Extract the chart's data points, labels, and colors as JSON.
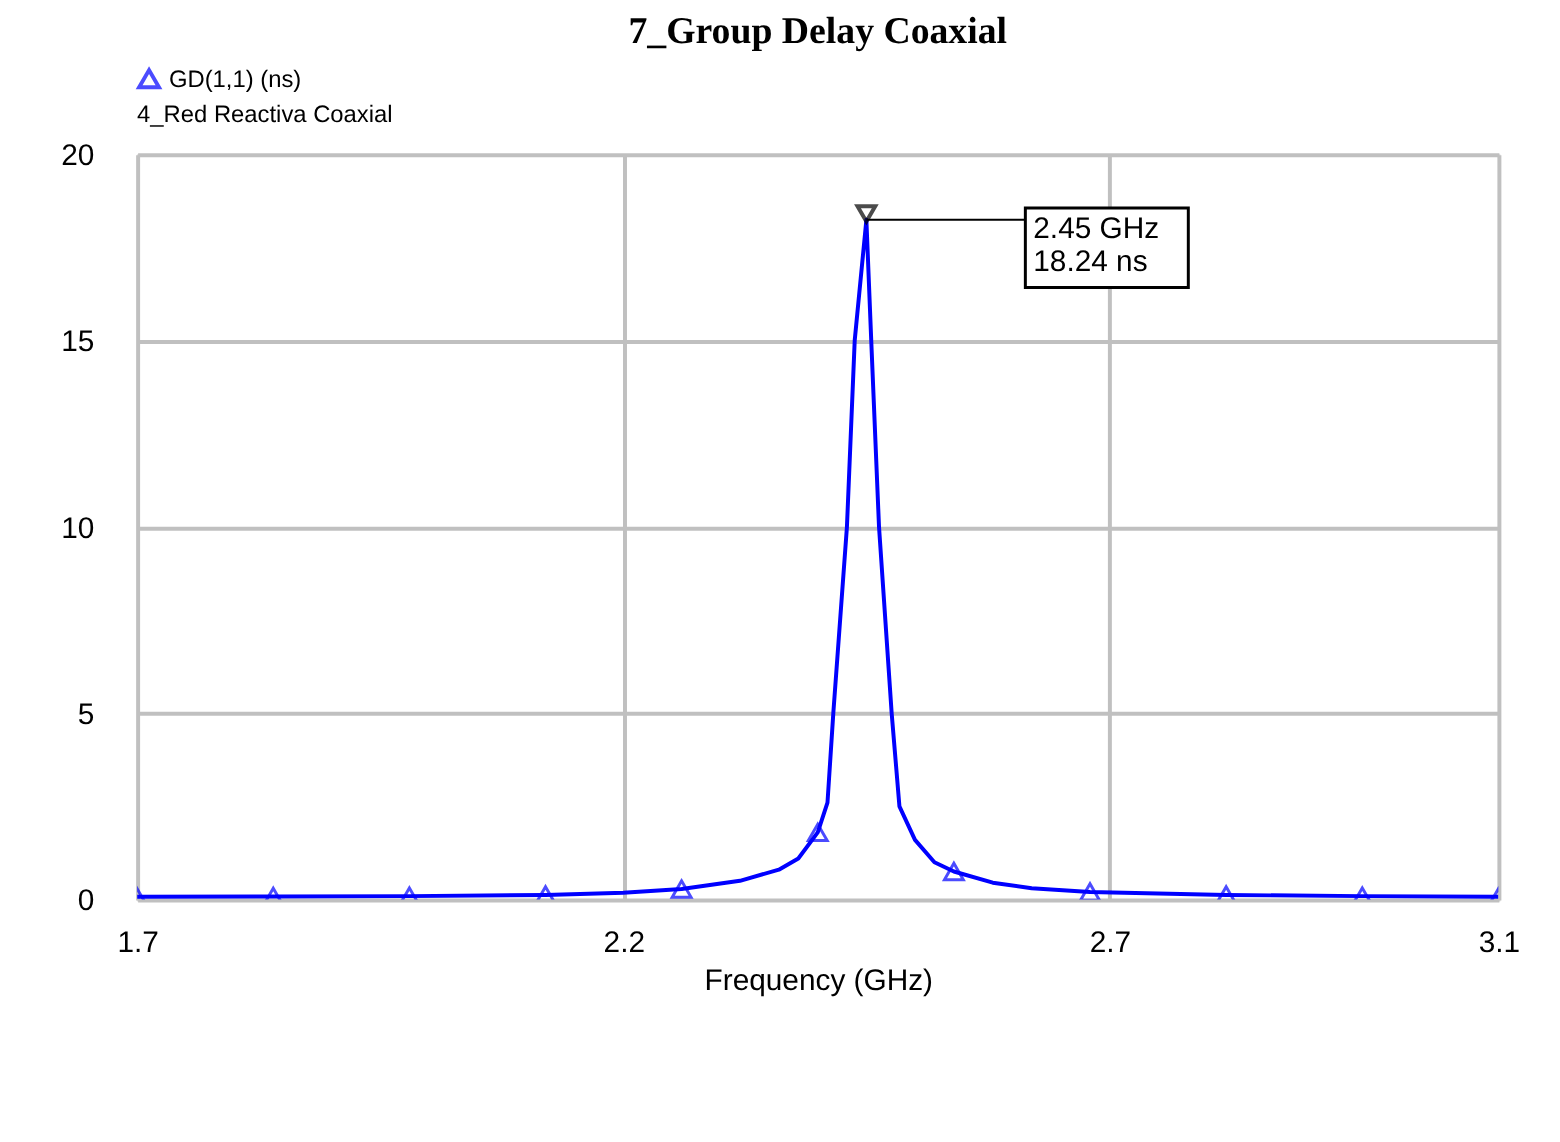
{
  "chart_data": {
    "type": "line",
    "title": "7_Group Delay Coaxial",
    "xlabel": "Frequency (GHz)",
    "legend_title": "4_Red Reactiva Coaxial",
    "legend": "top",
    "grid": true,
    "marker": "triangle",
    "line_style": "solid",
    "xlim": [
      1.7,
      3.1
    ],
    "xticks": [
      1.7,
      2.2,
      2.7,
      3.1
    ],
    "ylim": [
      0,
      20
    ],
    "yticks": [
      0,
      5,
      10,
      15,
      20
    ],
    "series": [
      {
        "name": "GD(1,1) (ns)",
        "type": "scatter",
        "color": "#0000ff",
        "x": [
          1.7,
          1.84,
          1.98,
          2.12,
          2.26,
          2.4,
          2.54,
          2.68,
          2.82,
          2.96,
          3.1
        ],
        "values": [
          0.07,
          0.08,
          0.09,
          0.12,
          0.28,
          1.8,
          0.75,
          0.2,
          0.12,
          0.09,
          0.07
        ]
      },
      {
        "color": "#0000ff",
        "marker": "none",
        "x": [
          1.7,
          1.84,
          1.98,
          2.12,
          2.2,
          2.26,
          2.32,
          2.36,
          2.38,
          2.4,
          2.41,
          2.416,
          2.43,
          2.438,
          2.45,
          2.455,
          2.463,
          2.476,
          2.484,
          2.5,
          2.52,
          2.54,
          2.58,
          2.62,
          2.68,
          2.82,
          2.96,
          3.1
        ],
        "values": [
          0.07,
          0.08,
          0.09,
          0.12,
          0.18,
          0.28,
          0.5,
          0.8,
          1.1,
          1.8,
          2.6,
          5,
          10,
          15,
          18.24,
          15,
          10,
          5,
          2.5,
          1.6,
          1.0,
          0.75,
          0.45,
          0.3,
          0.2,
          0.12,
          0.09,
          0.07
        ]
      }
    ],
    "annotations": [
      {
        "text": "2.45 GHz\n18.24 ns",
        "x": 2.45,
        "y": 18.24
      }
    ]
  }
}
